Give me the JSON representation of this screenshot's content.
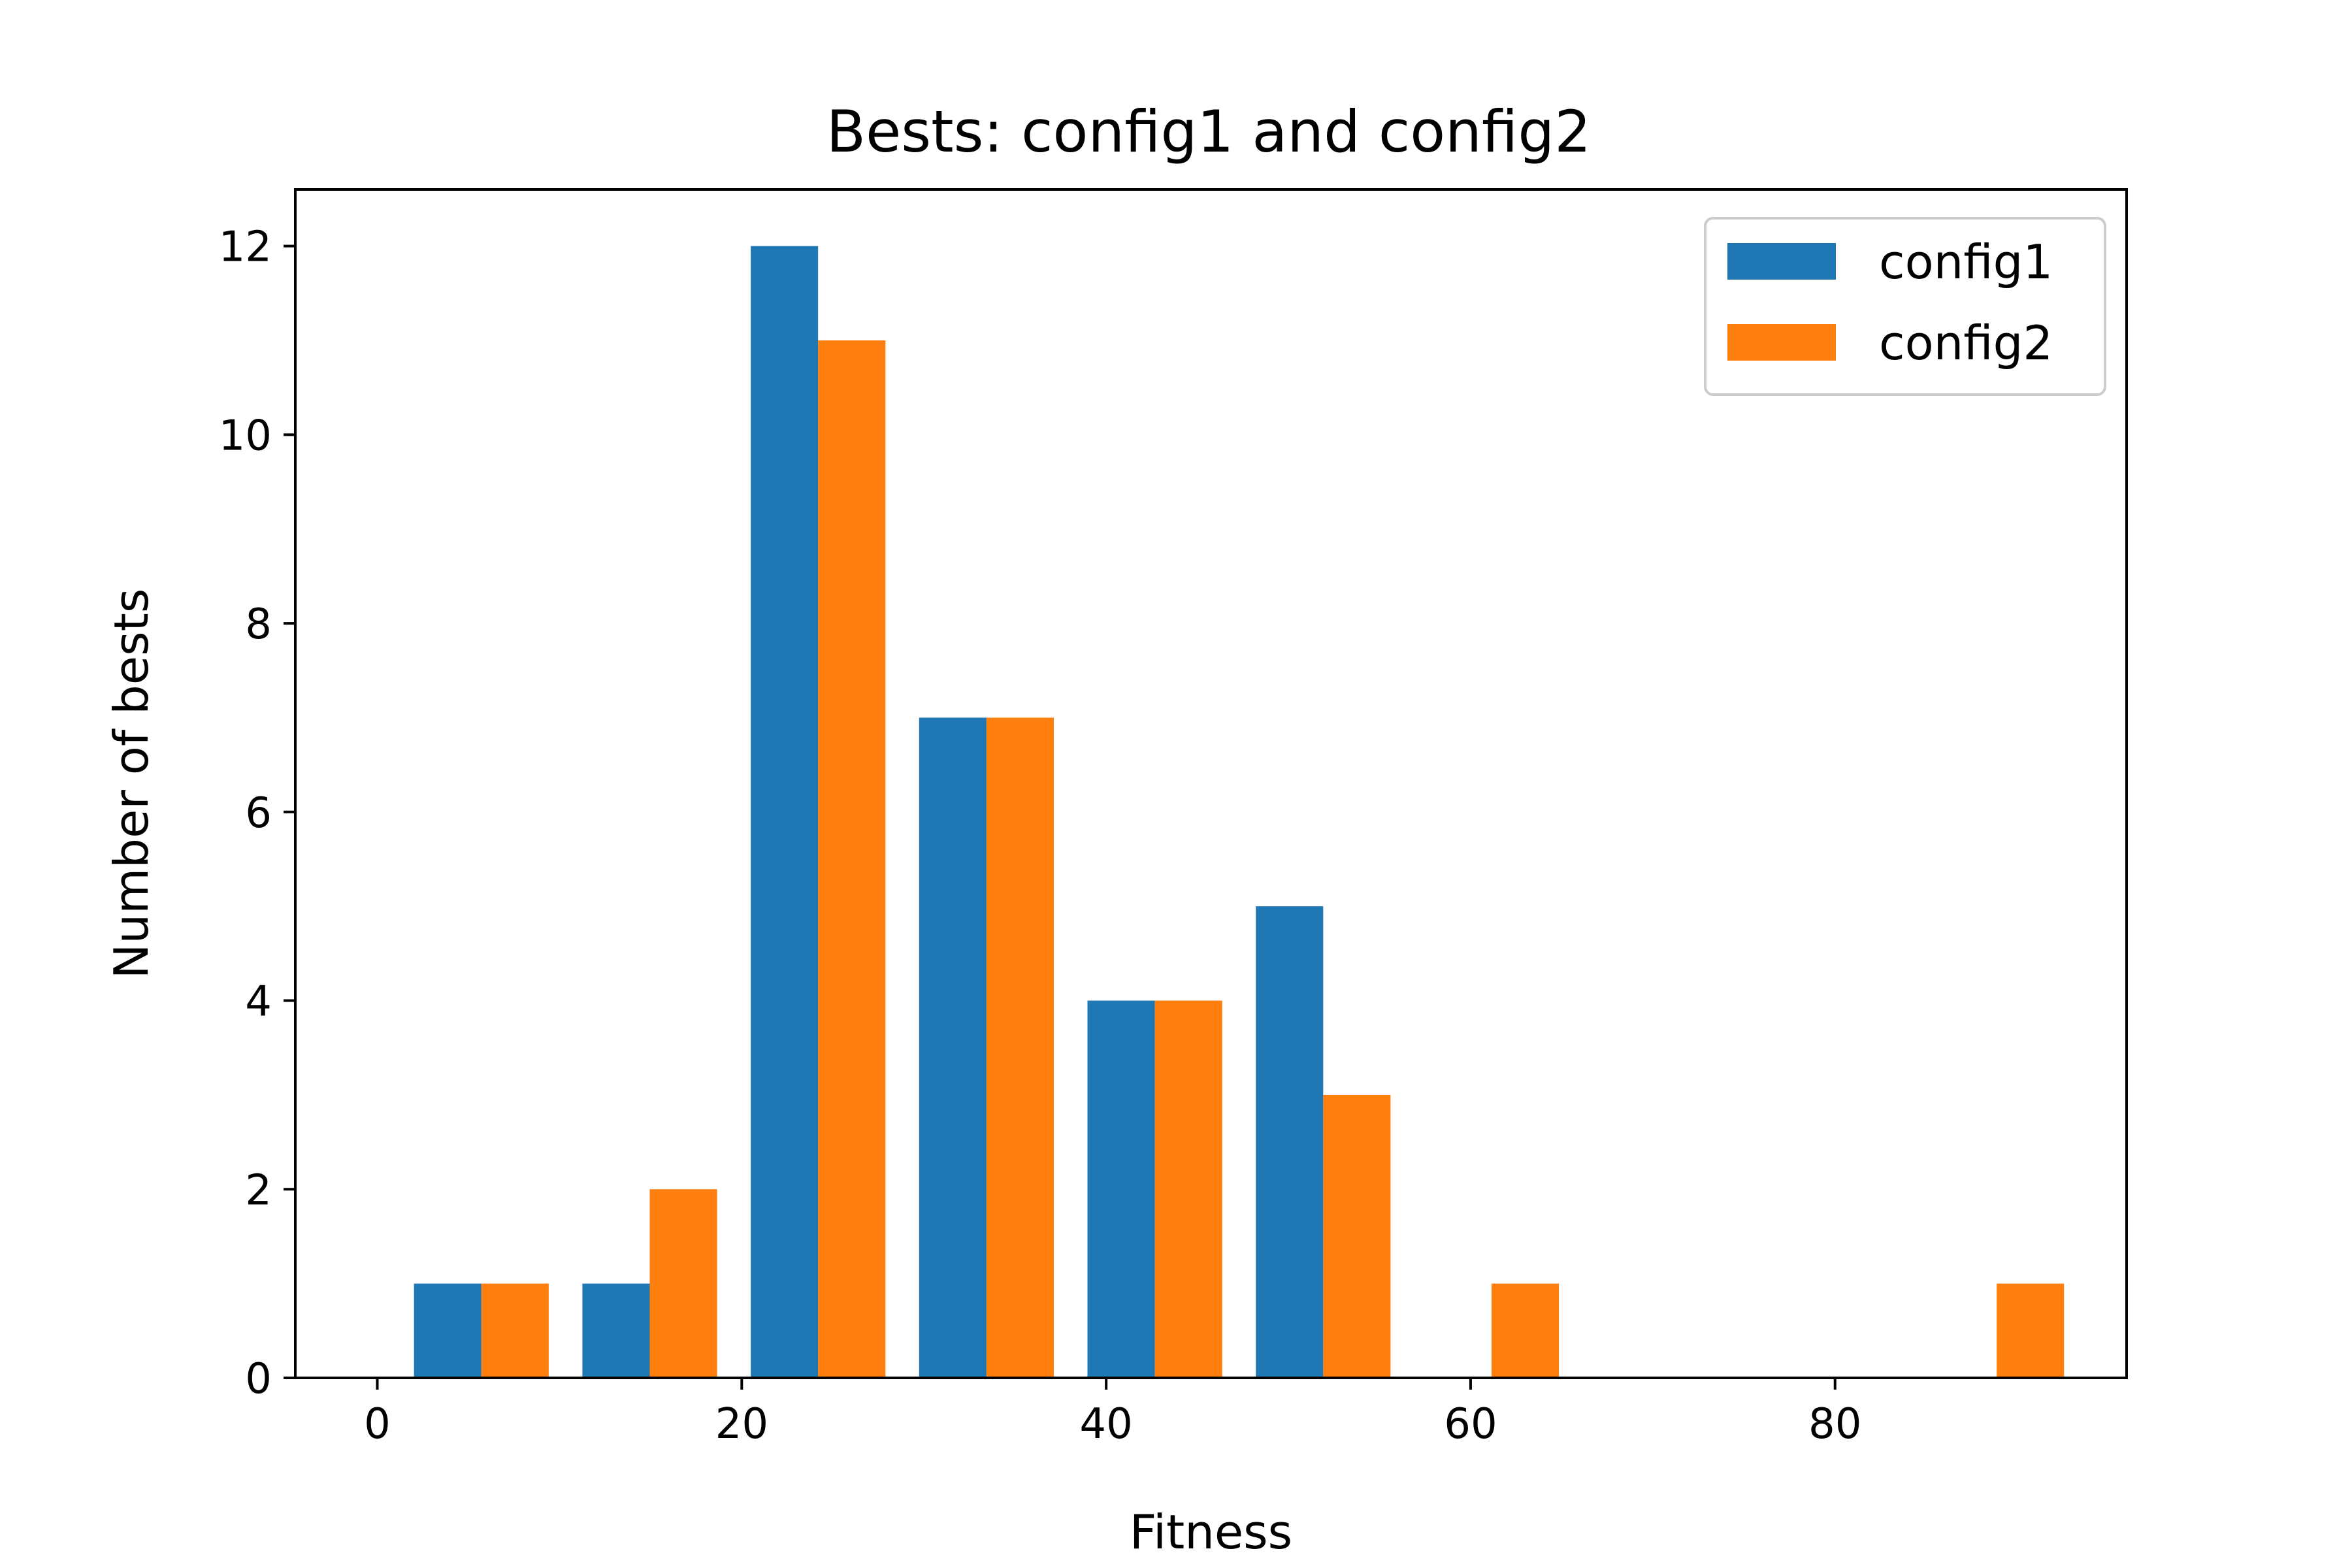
{
  "chart_data": {
    "type": "bar",
    "title": "Bests: config1 and config2",
    "xlabel": "Fitness",
    "ylabel": "Number of bests",
    "xlim": [
      -4.5,
      96
    ],
    "ylim": [
      0,
      12.6
    ],
    "xticks": [
      0,
      20,
      40,
      60,
      80
    ],
    "yticks": [
      0,
      2,
      4,
      6,
      8,
      10,
      12
    ],
    "grid": false,
    "legend_position": "top-right",
    "bin_edges": [
      1.09,
      10.33,
      19.57,
      28.81,
      38.05,
      47.29,
      56.53,
      65.77,
      75.01,
      84.25,
      93.49
    ],
    "series": [
      {
        "name": "config1",
        "color": "#1f77b4",
        "values": [
          1,
          1,
          12,
          7,
          4,
          5,
          0,
          0,
          0,
          0
        ]
      },
      {
        "name": "config2",
        "color": "#ff7f0e",
        "values": [
          1,
          2,
          11,
          7,
          4,
          3,
          1,
          0,
          0,
          1
        ]
      }
    ]
  }
}
